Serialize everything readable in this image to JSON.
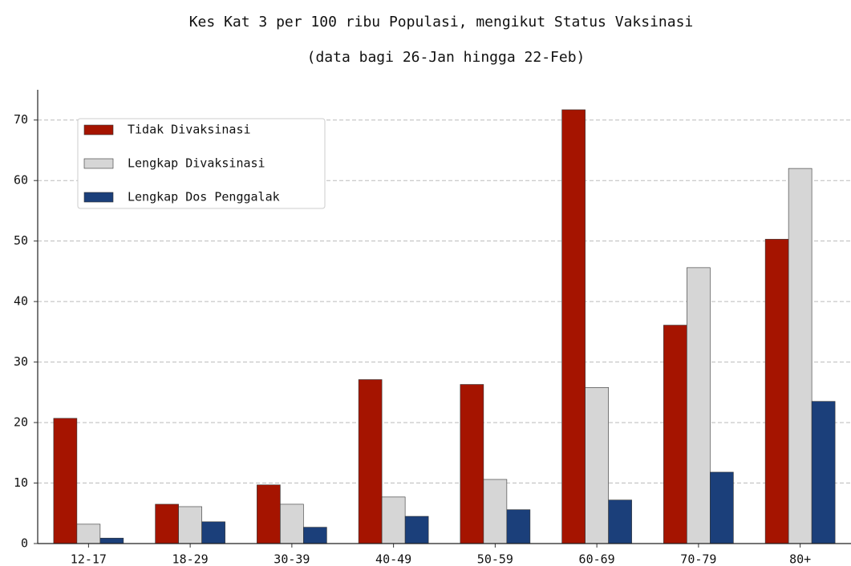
{
  "chart_data": {
    "type": "bar",
    "title": "Kes Kat 3 per 100 ribu Populasi, mengikut Status Vaksinasi",
    "subtitle": "(data bagi 26-Jan hingga 22-Feb)",
    "categories": [
      "12-17",
      "18-29",
      "30-39",
      "40-49",
      "50-59",
      "60-69",
      "70-79",
      "80+"
    ],
    "series": [
      {
        "name": "Tidak Divaksinasi",
        "color": "#a51400",
        "values": [
          20.7,
          6.5,
          9.7,
          27.1,
          26.3,
          71.7,
          36.1,
          50.3
        ]
      },
      {
        "name": "Lengkap Divaksinasi",
        "color": "#d6d6d6",
        "values": [
          3.2,
          6.1,
          6.5,
          7.7,
          10.6,
          25.8,
          45.6,
          62.0
        ]
      },
      {
        "name": "Lengkap Dos Penggalak",
        "color": "#1b3f7a",
        "values": [
          0.9,
          3.6,
          2.7,
          4.5,
          5.6,
          7.2,
          11.8,
          23.5
        ]
      }
    ],
    "ylim": [
      0,
      75
    ],
    "yticks": [
      0,
      10,
      20,
      30,
      40,
      50,
      60,
      70
    ],
    "grid": true,
    "legend": "upper left"
  }
}
